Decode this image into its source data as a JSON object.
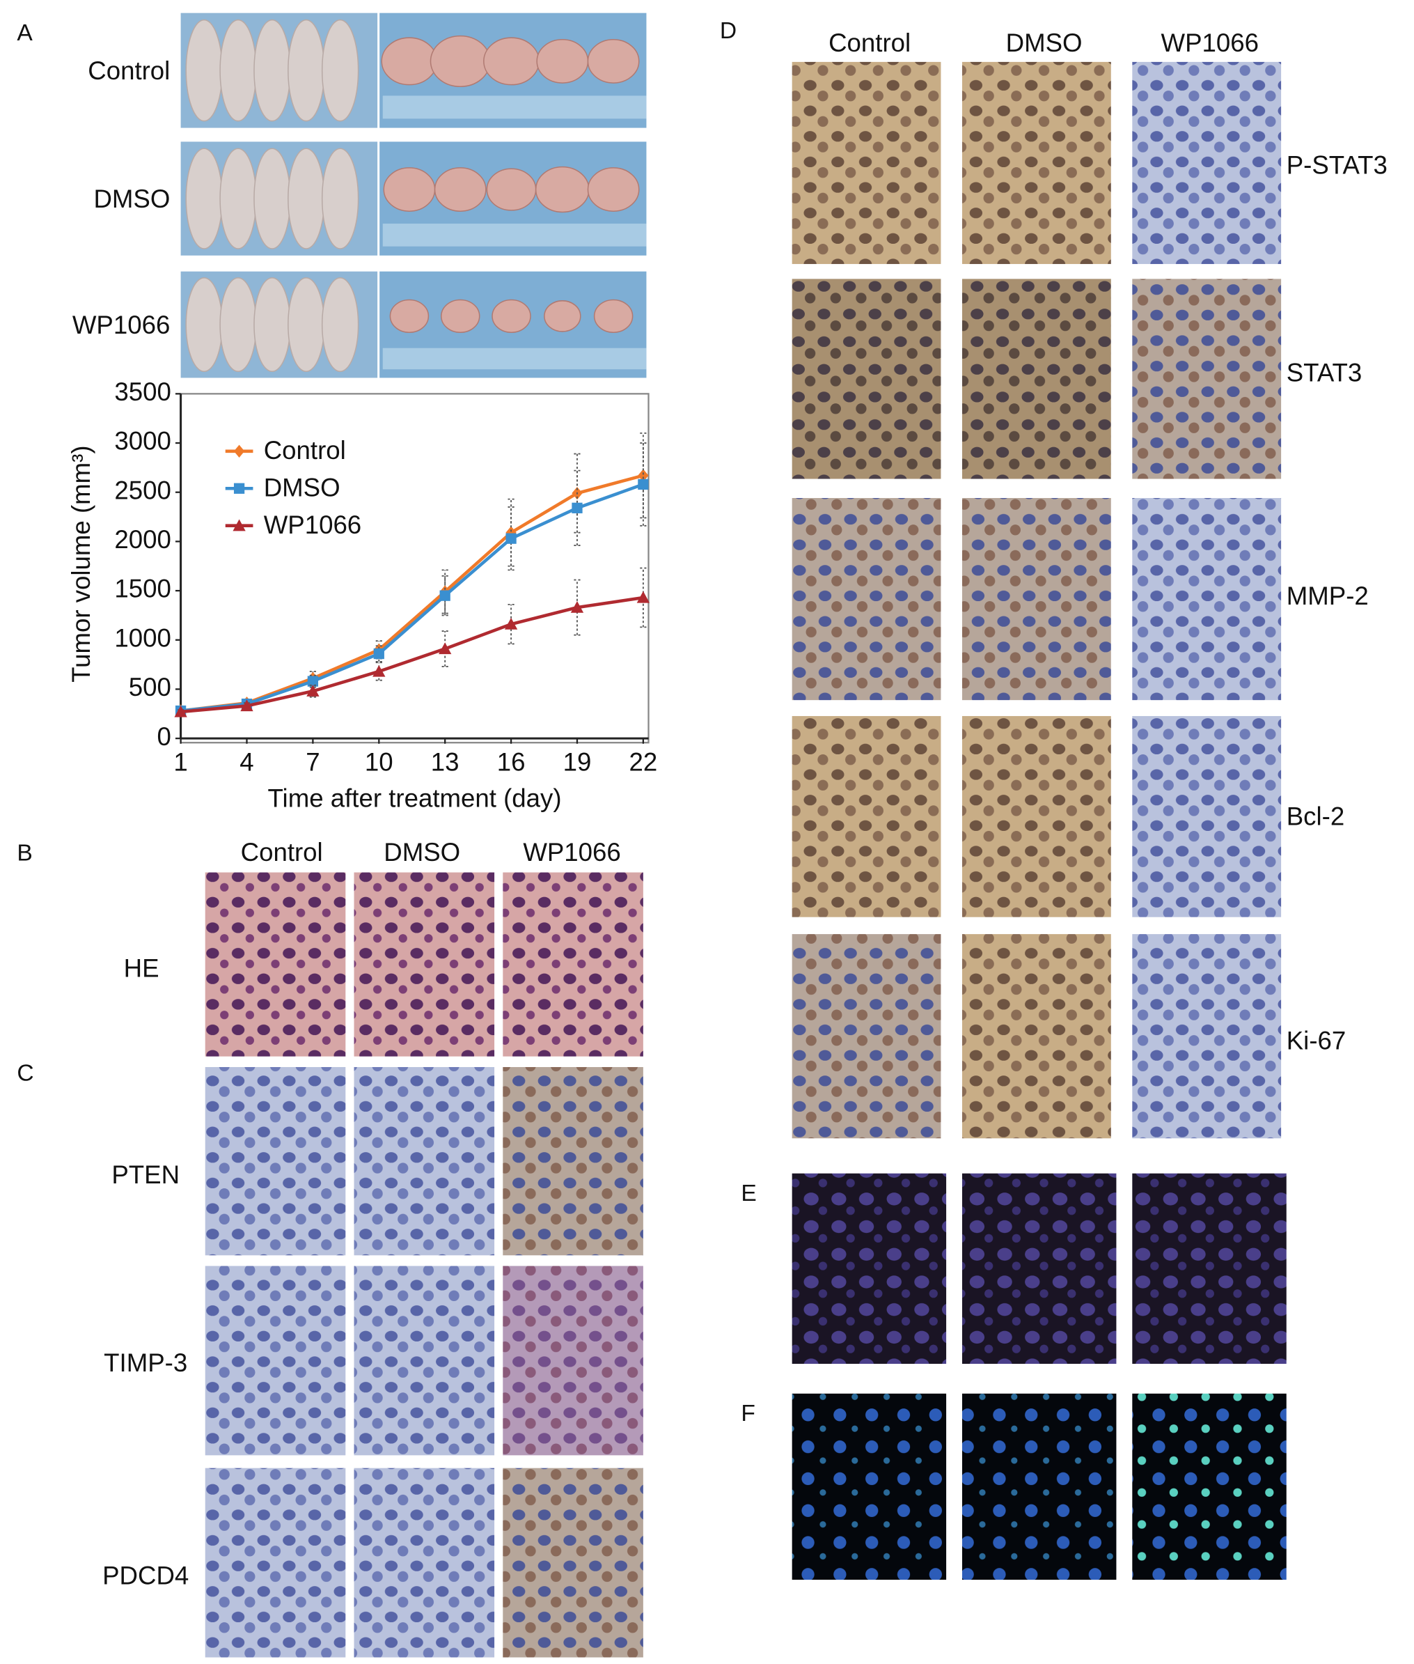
{
  "panel_labels": [
    "A",
    "B",
    "C",
    "D",
    "E",
    "F"
  ],
  "panel_a": {
    "rows": [
      "Control",
      "DMSO",
      "WP1066"
    ]
  },
  "chart_data": {
    "type": "line",
    "xlabel": "Time after treatment (day)",
    "ylabel": "Tumor volume (mm³)",
    "x": [
      1,
      4,
      7,
      10,
      13,
      16,
      19,
      22
    ],
    "series": [
      {
        "name": "Control",
        "color": "#f07a2a",
        "marker": "diamond",
        "values": [
          280,
          360,
          610,
          900,
          1490,
          2090,
          2490,
          2670
        ],
        "errors": [
          20,
          30,
          70,
          90,
          220,
          340,
          400,
          430
        ]
      },
      {
        "name": "DMSO",
        "color": "#3a8fd0",
        "marker": "square",
        "values": [
          280,
          350,
          580,
          860,
          1450,
          2030,
          2340,
          2580
        ],
        "errors": [
          20,
          30,
          60,
          80,
          200,
          320,
          380,
          420
        ]
      },
      {
        "name": "WP1066",
        "color": "#b02a30",
        "marker": "triangle",
        "values": [
          270,
          330,
          480,
          680,
          910,
          1160,
          1330,
          1430
        ],
        "errors": [
          20,
          30,
          60,
          90,
          180,
          200,
          280,
          300
        ]
      }
    ],
    "xlim": [
      1,
      22
    ],
    "xticks": [
      1,
      4,
      7,
      10,
      13,
      16,
      19,
      22
    ],
    "ylim": [
      0,
      3500
    ],
    "yticks": [
      0,
      500,
      1000,
      1500,
      2000,
      2500,
      3000,
      3500
    ],
    "legend": "upper-left"
  },
  "panel_b": {
    "columns": [
      "Control",
      "DMSO",
      "WP1066"
    ],
    "rows": [
      "HE"
    ]
  },
  "panel_c": {
    "rows": [
      "PTEN",
      "TIMP-3",
      "PDCD4"
    ]
  },
  "panel_d": {
    "columns": [
      "Control",
      "DMSO",
      "WP1066"
    ],
    "rows": [
      "P-STAT3",
      "STAT3",
      "MMP-2",
      "Bcl-2",
      "Ki-67"
    ]
  }
}
